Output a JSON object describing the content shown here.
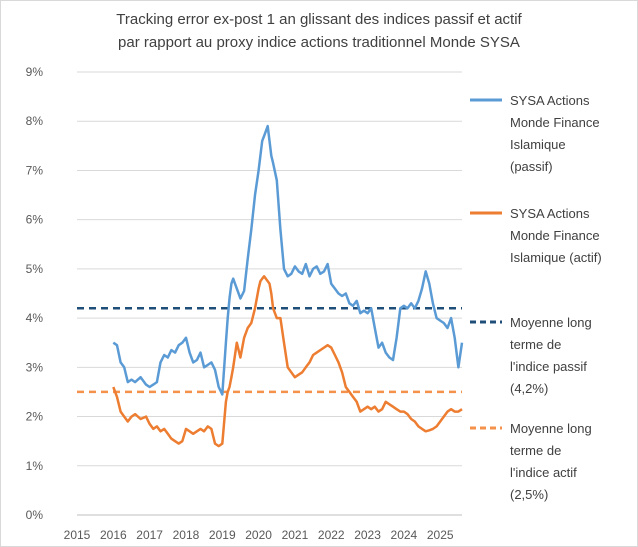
{
  "chart_data": {
    "type": "line",
    "title": [
      "Tracking error ex-post 1 an glissant des indices passif et actif",
      "par rapport au proxy indice actions traditionnel Monde SYSA"
    ],
    "xlabel": "",
    "ylabel": "",
    "xlim": [
      2015,
      2025.6
    ],
    "ylim": [
      0,
      9
    ],
    "x_ticks": [
      "2015",
      "2016",
      "2017",
      "2018",
      "2019",
      "2020",
      "2021",
      "2022",
      "2023",
      "2024",
      "2025"
    ],
    "y_ticks": [
      "0%",
      "1%",
      "2%",
      "3%",
      "4%",
      "5%",
      "6%",
      "7%",
      "8%",
      "9%"
    ],
    "grid": "horizontal",
    "legend_position": "right",
    "series": [
      {
        "name": [
          "SYSA Actions",
          "Monde Finance",
          "Islamique",
          "(passif)"
        ],
        "color": "#5b9bd5",
        "style": "solid",
        "x": [
          2016.0,
          2016.1,
          2016.2,
          2016.3,
          2016.4,
          2016.5,
          2016.6,
          2016.75,
          2016.9,
          2017.0,
          2017.1,
          2017.2,
          2017.3,
          2017.4,
          2017.5,
          2017.6,
          2017.7,
          2017.8,
          2017.9,
          2018.0,
          2018.1,
          2018.2,
          2018.3,
          2018.4,
          2018.5,
          2018.6,
          2018.7,
          2018.8,
          2018.9,
          2019.0,
          2019.1,
          2019.15,
          2019.2,
          2019.25,
          2019.3,
          2019.4,
          2019.5,
          2019.6,
          2019.7,
          2019.8,
          2019.9,
          2020.0,
          2020.05,
          2020.1,
          2020.15,
          2020.2,
          2020.25,
          2020.3,
          2020.35,
          2020.4,
          2020.5,
          2020.6,
          2020.7,
          2020.8,
          2020.9,
          2021.0,
          2021.1,
          2021.2,
          2021.3,
          2021.4,
          2021.5,
          2021.6,
          2021.7,
          2021.8,
          2021.9,
          2022.0,
          2022.1,
          2022.2,
          2022.3,
          2022.4,
          2022.5,
          2022.6,
          2022.7,
          2022.8,
          2022.9,
          2023.0,
          2023.1,
          2023.2,
          2023.3,
          2023.4,
          2023.5,
          2023.6,
          2023.7,
          2023.8,
          2023.9,
          2024.0,
          2024.1,
          2024.2,
          2024.3,
          2024.4,
          2024.5,
          2024.6,
          2024.7,
          2024.8,
          2024.9,
          2025.0,
          2025.1,
          2025.2,
          2025.3,
          2025.4,
          2025.5,
          2025.6
        ],
        "y": [
          3.5,
          3.45,
          3.1,
          3.0,
          2.7,
          2.75,
          2.7,
          2.8,
          2.65,
          2.6,
          2.65,
          2.7,
          3.1,
          3.25,
          3.2,
          3.35,
          3.3,
          3.45,
          3.5,
          3.6,
          3.3,
          3.1,
          3.15,
          3.3,
          3.0,
          3.05,
          3.1,
          2.95,
          2.6,
          2.45,
          3.5,
          4.0,
          4.4,
          4.7,
          4.8,
          4.6,
          4.4,
          4.55,
          5.2,
          5.8,
          6.5,
          7.0,
          7.3,
          7.6,
          7.7,
          7.8,
          7.9,
          7.6,
          7.3,
          7.15,
          6.8,
          5.8,
          5.0,
          4.85,
          4.9,
          5.05,
          4.95,
          4.9,
          5.1,
          4.85,
          5.0,
          5.05,
          4.9,
          4.95,
          5.1,
          4.7,
          4.6,
          4.5,
          4.45,
          4.5,
          4.3,
          4.25,
          4.35,
          4.1,
          4.15,
          4.1,
          4.2,
          3.8,
          3.4,
          3.5,
          3.3,
          3.2,
          3.15,
          3.6,
          4.2,
          4.25,
          4.2,
          4.3,
          4.2,
          4.35,
          4.6,
          4.95,
          4.7,
          4.3,
          4.0,
          3.95,
          3.9,
          3.8,
          4.0,
          3.6,
          3.0,
          3.5
        ]
      },
      {
        "name": [
          "SYSA Actions",
          "Monde Finance",
          "Islamique (actif)"
        ],
        "color": "#ed7d31",
        "style": "solid",
        "x": [
          2016.0,
          2016.1,
          2016.2,
          2016.3,
          2016.4,
          2016.5,
          2016.6,
          2016.75,
          2016.9,
          2017.0,
          2017.1,
          2017.2,
          2017.3,
          2017.4,
          2017.5,
          2017.6,
          2017.7,
          2017.8,
          2017.9,
          2018.0,
          2018.1,
          2018.2,
          2018.3,
          2018.4,
          2018.5,
          2018.6,
          2018.7,
          2018.8,
          2018.9,
          2019.0,
          2019.1,
          2019.15,
          2019.2,
          2019.25,
          2019.3,
          2019.4,
          2019.5,
          2019.6,
          2019.7,
          2019.8,
          2019.9,
          2020.0,
          2020.05,
          2020.1,
          2020.15,
          2020.2,
          2020.25,
          2020.3,
          2020.35,
          2020.4,
          2020.5,
          2020.6,
          2020.7,
          2020.8,
          2020.9,
          2021.0,
          2021.1,
          2021.2,
          2021.3,
          2021.4,
          2021.5,
          2021.6,
          2021.7,
          2021.8,
          2021.9,
          2022.0,
          2022.1,
          2022.2,
          2022.3,
          2022.4,
          2022.5,
          2022.6,
          2022.7,
          2022.8,
          2022.9,
          2023.0,
          2023.1,
          2023.2,
          2023.3,
          2023.4,
          2023.5,
          2023.6,
          2023.7,
          2023.8,
          2023.9,
          2024.0,
          2024.1,
          2024.2,
          2024.3,
          2024.4,
          2024.5,
          2024.6,
          2024.7,
          2024.8,
          2024.9,
          2025.0,
          2025.1,
          2025.2,
          2025.3,
          2025.4,
          2025.5,
          2025.6
        ],
        "y": [
          2.6,
          2.4,
          2.1,
          2.0,
          1.9,
          2.0,
          2.05,
          1.95,
          2.0,
          1.85,
          1.75,
          1.8,
          1.7,
          1.75,
          1.65,
          1.55,
          1.5,
          1.45,
          1.5,
          1.75,
          1.7,
          1.65,
          1.7,
          1.75,
          1.7,
          1.8,
          1.75,
          1.45,
          1.4,
          1.45,
          2.3,
          2.5,
          2.6,
          2.8,
          3.0,
          3.5,
          3.2,
          3.6,
          3.8,
          3.9,
          4.2,
          4.6,
          4.75,
          4.8,
          4.85,
          4.8,
          4.75,
          4.7,
          4.5,
          4.2,
          4.0,
          4.0,
          3.5,
          3.0,
          2.9,
          2.8,
          2.85,
          2.9,
          3.0,
          3.1,
          3.25,
          3.3,
          3.35,
          3.4,
          3.45,
          3.4,
          3.25,
          3.1,
          2.9,
          2.6,
          2.5,
          2.4,
          2.3,
          2.1,
          2.15,
          2.2,
          2.15,
          2.2,
          2.1,
          2.15,
          2.3,
          2.25,
          2.2,
          2.15,
          2.1,
          2.1,
          2.05,
          1.95,
          1.9,
          1.8,
          1.75,
          1.7,
          1.72,
          1.75,
          1.8,
          1.9,
          2.0,
          2.1,
          2.15,
          2.1,
          2.1,
          2.15
        ]
      },
      {
        "name": [
          "Moyenne long",
          "terme de",
          "l'indice passif",
          "(4,2%)"
        ],
        "color": "#1f4e79",
        "style": "dashed",
        "x": [
          2015,
          2025.6
        ],
        "y": [
          4.2,
          4.2
        ]
      },
      {
        "name": [
          "Moyenne long",
          "terme de",
          "l'indice actif",
          "(2,5%)"
        ],
        "color": "#f4914a",
        "style": "dashed",
        "x": [
          2015,
          2025.6
        ],
        "y": [
          2.5,
          2.5
        ]
      }
    ]
  }
}
